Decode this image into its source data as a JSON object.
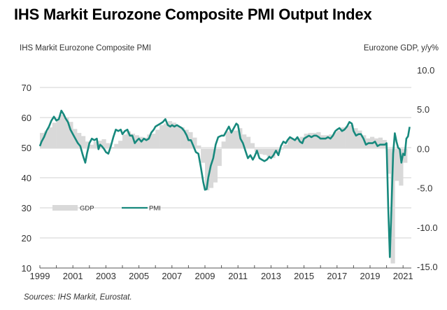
{
  "title": "IHS Markit Eurozone Composite PMI Output Index",
  "left_axis_title": "IHS Markit Eurozone Composite  PMI",
  "right_axis_title": "Eurozone GDP, y/y%",
  "source": "Sources: IHS Markit, Eurostat.",
  "chart_data": {
    "type": "line",
    "title": "IHS Markit Eurozone Composite PMI Output Index",
    "xlabel": "",
    "ylabel": "IHS Markit Eurozone Composite PMI",
    "ylabel_right": "Eurozone GDP, y/y%",
    "xlim": [
      1999.0,
      2021.5
    ],
    "ylim": [
      10,
      70
    ],
    "ylim_right": [
      -15,
      10
    ],
    "x_ticks": [
      "1999",
      "2001",
      "2003",
      "2005",
      "2007",
      "2009",
      "2011",
      "2013",
      "2015",
      "2017",
      "2019",
      "2021"
    ],
    "y_ticks": [
      "10",
      "20",
      "30",
      "40",
      "50",
      "60",
      "70"
    ],
    "y_ticks_right": [
      "-15.0",
      "-10.0",
      "-5.0",
      "0.0",
      "5.0",
      "10.0"
    ],
    "grid": true,
    "legend": {
      "placement": "middle-left",
      "entries": [
        {
          "name": "GDP",
          "color": "#d9d9d9",
          "type": "bar"
        },
        {
          "name": "PMI",
          "color": "#17897d",
          "type": "line"
        }
      ]
    },
    "series": [
      {
        "name": "PMI",
        "axis": "left",
        "color": "#17897d",
        "x": [
          1999.0,
          1999.1,
          1999.25,
          1999.4,
          1999.55,
          1999.7,
          1999.85,
          2000.0,
          2000.15,
          2000.3,
          2000.45,
          2000.55,
          2000.7,
          2000.85,
          2001.0,
          2001.15,
          2001.3,
          2001.45,
          2001.6,
          2001.75,
          2001.85,
          2002.0,
          2002.15,
          2002.3,
          2002.45,
          2002.55,
          2002.65,
          2002.75,
          2002.9,
          2003.0,
          2003.15,
          2003.3,
          2003.45,
          2003.6,
          2003.75,
          2003.9,
          2004.0,
          2004.15,
          2004.3,
          2004.45,
          2004.6,
          2004.75,
          2004.9,
          2005.0,
          2005.15,
          2005.3,
          2005.45,
          2005.6,
          2005.75,
          2005.9,
          2006.0,
          2006.15,
          2006.3,
          2006.45,
          2006.6,
          2006.75,
          2006.9,
          2007.0,
          2007.15,
          2007.3,
          2007.45,
          2007.6,
          2007.75,
          2007.9,
          2008.0,
          2008.15,
          2008.3,
          2008.45,
          2008.6,
          2008.75,
          2008.9,
          2009.0,
          2009.1,
          2009.2,
          2009.35,
          2009.5,
          2009.65,
          2009.8,
          2010.0,
          2010.15,
          2010.3,
          2010.45,
          2010.6,
          2010.75,
          2010.9,
          2011.0,
          2011.15,
          2011.3,
          2011.45,
          2011.6,
          2011.75,
          2011.9,
          2012.0,
          2012.15,
          2012.3,
          2012.45,
          2012.6,
          2012.75,
          2012.9,
          2013.0,
          2013.15,
          2013.3,
          2013.45,
          2013.6,
          2013.75,
          2013.9,
          2014.0,
          2014.15,
          2014.3,
          2014.45,
          2014.6,
          2014.75,
          2014.9,
          2015.0,
          2015.15,
          2015.3,
          2015.45,
          2015.6,
          2015.75,
          2015.9,
          2016.0,
          2016.15,
          2016.3,
          2016.45,
          2016.6,
          2016.75,
          2016.9,
          2017.0,
          2017.15,
          2017.3,
          2017.45,
          2017.6,
          2017.75,
          2017.9,
          2018.0,
          2018.15,
          2018.3,
          2018.45,
          2018.6,
          2018.75,
          2018.9,
          2019.0,
          2019.15,
          2019.3,
          2019.45,
          2019.6,
          2019.75,
          2019.9,
          2020.0,
          2020.1,
          2020.2,
          2020.3,
          2020.4,
          2020.5,
          2020.6,
          2020.7,
          2020.8,
          2020.9,
          2021.0,
          2021.1,
          2021.2,
          2021.3,
          2021.4
        ],
        "values": [
          50.5,
          52.0,
          53.5,
          55.5,
          57.0,
          59.0,
          60.3,
          59.0,
          59.5,
          62.3,
          61.0,
          59.8,
          58.5,
          56.0,
          54.5,
          53.0,
          51.5,
          50.5,
          47.5,
          45.0,
          48.0,
          51.5,
          53.0,
          52.5,
          53.0,
          49.5,
          51.0,
          50.5,
          49.5,
          48.5,
          48.0,
          50.5,
          53.5,
          56.0,
          55.5,
          56.0,
          54.5,
          55.5,
          56.0,
          54.0,
          54.0,
          51.5,
          52.5,
          53.0,
          52.0,
          53.0,
          52.5,
          53.0,
          55.0,
          56.0,
          57.0,
          57.5,
          58.0,
          58.5,
          59.5,
          57.5,
          57.0,
          57.5,
          57.0,
          57.5,
          57.0,
          56.5,
          55.5,
          54.0,
          52.5,
          52.5,
          50.5,
          48.5,
          48.0,
          43.5,
          38.5,
          36.0,
          36.2,
          40.0,
          44.0,
          46.5,
          51.0,
          53.5,
          54.0,
          54.0,
          55.5,
          57.0,
          55.0,
          56.5,
          58.0,
          57.5,
          53.0,
          51.5,
          49.0,
          46.5,
          47.5,
          46.0,
          47.0,
          49.0,
          46.5,
          46.0,
          45.5,
          46.0,
          47.0,
          46.5,
          47.5,
          49.0,
          47.5,
          50.5,
          52.0,
          51.5,
          52.5,
          53.5,
          53.0,
          52.5,
          53.5,
          52.0,
          51.5,
          53.0,
          53.5,
          54.0,
          53.5,
          54.0,
          54.0,
          53.5,
          53.0,
          53.0,
          53.0,
          53.5,
          53.0,
          54.0,
          55.5,
          56.0,
          56.5,
          55.5,
          56.0,
          57.0,
          58.5,
          58.0,
          55.5,
          54.0,
          54.5,
          54.5,
          53.0,
          51.0,
          51.5,
          51.5,
          51.5,
          52.0,
          50.5,
          51.0,
          51.0,
          51.0,
          51.5,
          30.0,
          13.6,
          31.0,
          48.0,
          54.8,
          52.0,
          50.0,
          49.5,
          45.0,
          48.0,
          47.5,
          53.0,
          53.8,
          56.9
        ]
      },
      {
        "name": "GDP",
        "axis": "right",
        "color": "#d9d9d9",
        "type": "bar",
        "x": [
          1999.0,
          1999.25,
          1999.5,
          1999.75,
          2000.0,
          2000.25,
          2000.5,
          2000.75,
          2001.0,
          2001.25,
          2001.5,
          2001.75,
          2002.0,
          2002.25,
          2002.5,
          2002.75,
          2003.0,
          2003.25,
          2003.5,
          2003.75,
          2004.0,
          2004.25,
          2004.5,
          2004.75,
          2005.0,
          2005.25,
          2005.5,
          2005.75,
          2006.0,
          2006.25,
          2006.5,
          2006.75,
          2007.0,
          2007.25,
          2007.5,
          2007.75,
          2008.0,
          2008.25,
          2008.5,
          2008.75,
          2009.0,
          2009.25,
          2009.5,
          2009.75,
          2010.0,
          2010.25,
          2010.5,
          2010.75,
          2011.0,
          2011.25,
          2011.5,
          2011.75,
          2012.0,
          2012.25,
          2012.5,
          2012.75,
          2013.0,
          2013.25,
          2013.5,
          2013.75,
          2014.0,
          2014.25,
          2014.5,
          2014.75,
          2015.0,
          2015.25,
          2015.5,
          2015.75,
          2016.0,
          2016.25,
          2016.5,
          2016.75,
          2017.0,
          2017.25,
          2017.5,
          2017.75,
          2018.0,
          2018.25,
          2018.5,
          2018.75,
          2019.0,
          2019.25,
          2019.5,
          2019.75,
          2020.0,
          2020.25,
          2020.5,
          2020.75,
          2021.0
        ],
        "values": [
          2.0,
          2.2,
          2.7,
          3.3,
          3.8,
          4.3,
          4.0,
          3.4,
          2.5,
          2.0,
          1.6,
          0.9,
          0.5,
          0.9,
          1.0,
          1.2,
          0.7,
          0.2,
          0.6,
          1.0,
          1.8,
          2.2,
          1.9,
          1.7,
          1.5,
          1.4,
          1.8,
          1.9,
          2.4,
          3.0,
          3.2,
          3.5,
          3.3,
          2.8,
          2.7,
          2.4,
          2.1,
          1.4,
          0.4,
          -1.8,
          -5.3,
          -5.0,
          -4.3,
          -2.2,
          0.9,
          2.2,
          2.3,
          2.3,
          2.6,
          1.8,
          1.5,
          0.7,
          -0.4,
          -0.7,
          -0.8,
          -1.0,
          -1.2,
          -0.6,
          -0.1,
          0.5,
          1.3,
          1.2,
          1.3,
          1.5,
          1.9,
          2.0,
          2.0,
          2.1,
          1.7,
          1.7,
          1.8,
          2.1,
          2.3,
          2.7,
          2.9,
          3.0,
          2.6,
          2.3,
          1.7,
          1.3,
          1.5,
          1.3,
          1.4,
          1.1,
          -3.2,
          -14.6,
          -4.1,
          -4.7,
          -1.8
        ]
      }
    ]
  }
}
